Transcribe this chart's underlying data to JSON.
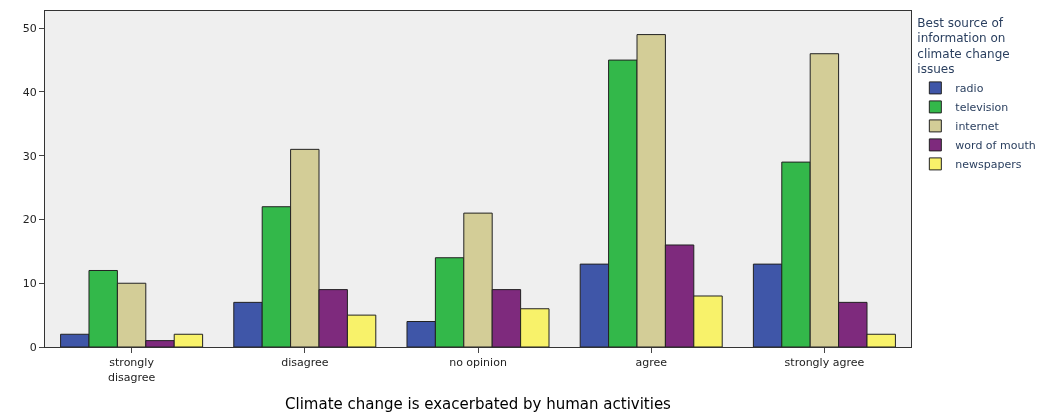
{
  "chart_data": {
    "type": "bar",
    "xlabel": "Climate change is exacerbated by human activities",
    "legend_title": "Best source of information on climate change issues",
    "categories": [
      "strongly disagree",
      "disagree",
      "no opinion",
      "agree",
      "strongly agree"
    ],
    "series": [
      {
        "name": "radio",
        "color": "#3f56a8",
        "values": [
          2,
          7,
          4,
          13,
          13
        ]
      },
      {
        "name": "television",
        "color": "#33b84a",
        "values": [
          12,
          22,
          14,
          45,
          29
        ]
      },
      {
        "name": "internet",
        "color": "#d3cd97",
        "values": [
          10,
          31,
          21,
          49,
          46
        ]
      },
      {
        "name": "word of mouth",
        "color": "#7e2a7d",
        "values": [
          1,
          9,
          9,
          16,
          7
        ]
      },
      {
        "name": "newspapers",
        "color": "#f8f26a",
        "values": [
          2,
          5,
          6,
          8,
          2
        ]
      }
    ],
    "ylim": [
      0,
      52.7
    ],
    "yticks": [
      0,
      10,
      20,
      30,
      40,
      50
    ],
    "grid": false,
    "legend": "top right"
  }
}
